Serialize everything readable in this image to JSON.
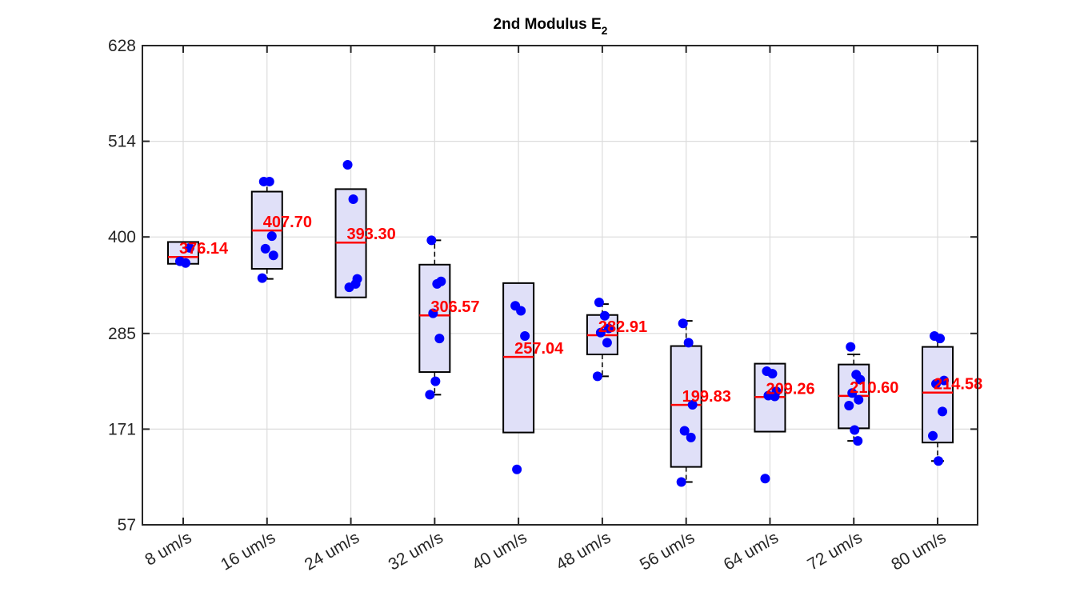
{
  "chart_data": {
    "type": "box",
    "title": "2nd Modulus E",
    "title_subscript": "2",
    "xlabel": "",
    "ylabel": "",
    "ylim": [
      57,
      628
    ],
    "yticks": [
      57,
      171,
      285,
      400,
      514,
      628
    ],
    "categories": [
      "8 um/s",
      "16 um/s",
      "24 um/s",
      "32 um/s",
      "40 um/s",
      "48 um/s",
      "56 um/s",
      "64 um/s",
      "72 um/s",
      "80 um/s"
    ],
    "grid": true,
    "colors": {
      "box_fill": "#e0e0f8",
      "box_edge": "#000000",
      "median": "#ff0000",
      "points": "#0000ff",
      "median_text": "#ff0000",
      "grid": "#dcdcdc"
    },
    "boxes": [
      {
        "category": "8 um/s",
        "q1": 368,
        "median": 376.14,
        "q3": 394,
        "whisker_low": 368,
        "whisker_high": 394,
        "median_label": "376.14"
      },
      {
        "category": "16 um/s",
        "q1": 362,
        "median": 407.7,
        "q3": 454,
        "whisker_low": 350,
        "whisker_high": 466,
        "median_label": "407.70"
      },
      {
        "category": "24 um/s",
        "q1": 328,
        "median": 393.3,
        "q3": 457,
        "whisker_low": 328,
        "whisker_high": 457,
        "median_label": "393.30"
      },
      {
        "category": "32 um/s",
        "q1": 239,
        "median": 306.57,
        "q3": 367,
        "whisker_low": 212,
        "whisker_high": 396,
        "median_label": "306.57"
      },
      {
        "category": "40 um/s",
        "q1": 167,
        "median": 257.04,
        "q3": 345,
        "whisker_low": 167,
        "whisker_high": 345,
        "median_label": "257.04"
      },
      {
        "category": "48 um/s",
        "q1": 260,
        "median": 282.91,
        "q3": 307,
        "whisker_low": 234,
        "whisker_high": 320,
        "median_label": "282.91"
      },
      {
        "category": "56 um/s",
        "q1": 126,
        "median": 199.83,
        "q3": 270,
        "whisker_low": 108,
        "whisker_high": 300,
        "median_label": "199.83"
      },
      {
        "category": "64 um/s",
        "q1": 168,
        "median": 209.26,
        "q3": 249,
        "whisker_low": 168,
        "whisker_high": 249,
        "median_label": "209.26"
      },
      {
        "category": "72 um/s",
        "q1": 172,
        "median": 210.6,
        "q3": 248,
        "whisker_low": 157,
        "whisker_high": 260,
        "median_label": "210.60"
      },
      {
        "category": "80 um/s",
        "q1": 155,
        "median": 214.58,
        "q3": 269,
        "whisker_low": 133,
        "whisker_high": 279,
        "median_label": "214.58"
      }
    ],
    "points": [
      [
        371,
        369,
        387
      ],
      [
        466,
        466,
        378,
        386,
        401,
        351
      ],
      [
        486,
        445,
        350,
        340,
        344
      ],
      [
        396,
        344,
        347,
        309,
        279,
        212,
        228
      ],
      [
        318,
        312,
        282,
        123
      ],
      [
        322,
        306,
        291,
        286,
        274,
        234
      ],
      [
        297,
        274,
        200,
        169,
        161,
        108
      ],
      [
        240,
        237,
        216,
        211,
        210,
        112
      ],
      [
        269,
        236,
        230,
        214,
        206,
        199,
        170,
        157
      ],
      [
        282,
        279,
        229,
        225,
        192,
        163,
        133
      ]
    ]
  }
}
